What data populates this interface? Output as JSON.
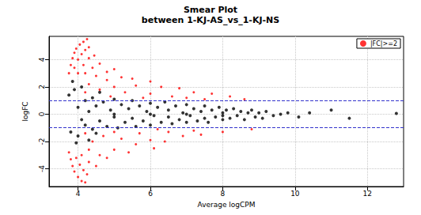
{
  "chart_data": {
    "type": "scatter",
    "title": "Smear Plot",
    "subtitle": "between 1-KJ-AS_vs_1-KJ-NS",
    "x_label": "Average logCPM",
    "y_label": "logFC",
    "xlim": [
      3.2,
      13.0
    ],
    "ylim": [
      -5.3,
      5.7
    ],
    "xticks": [
      4,
      6,
      8,
      10,
      12
    ],
    "yticks": [
      -4,
      -2,
      0,
      2,
      4
    ],
    "grid": true,
    "legend": "top-right",
    "hlines": [
      -1,
      1
    ],
    "hline_color": "#3333cc",
    "hline_style": "dashed",
    "series": [
      {
        "color": "#000000",
        "marker": "circle",
        "x": [
          3.75,
          3.8,
          3.9,
          4.0,
          4.0,
          4.1,
          4.2,
          4.2,
          4.3,
          4.4,
          4.4,
          4.5,
          4.6,
          4.7,
          4.8,
          4.9,
          5.0,
          5.0,
          5.1,
          5.2,
          5.3,
          5.4,
          5.5,
          5.5,
          5.6,
          5.7,
          5.8,
          5.9,
          6.0,
          6.0,
          6.1,
          6.2,
          6.3,
          6.4,
          6.5,
          6.5,
          6.6,
          6.7,
          6.8,
          6.9,
          7.0,
          7.0,
          7.1,
          7.2,
          7.3,
          7.4,
          7.5,
          7.5,
          7.6,
          7.7,
          7.8,
          7.9,
          8.0,
          8.0,
          8.1,
          8.2,
          8.3,
          8.4,
          8.5,
          8.6,
          8.7,
          8.8,
          8.9,
          9.0,
          9.1,
          9.2,
          9.4,
          9.6,
          9.8,
          10.1,
          10.4,
          11.0,
          11.5,
          12.8,
          4.1,
          3.85,
          3.95,
          4.3,
          4.6,
          4.5,
          5.0,
          6.0,
          7.0,
          8.0
        ],
        "values": [
          1.4,
          -1.3,
          1.8,
          -1.6,
          0.5,
          -0.4,
          1.0,
          -0.8,
          0.2,
          1.2,
          -1.1,
          0.6,
          -0.5,
          0.9,
          -0.9,
          0.3,
          -0.2,
          1.1,
          -1.0,
          0.7,
          -0.6,
          0.4,
          -0.3,
          1.0,
          -0.9,
          0.6,
          -0.5,
          0.2,
          0.8,
          -0.8,
          -0.1,
          0.5,
          -0.6,
          0.9,
          -0.2,
          0.3,
          -0.7,
          0.6,
          -0.4,
          0.1,
          0.7,
          -0.6,
          -0.1,
          0.4,
          -0.5,
          0.2,
          0.6,
          -0.3,
          -0.6,
          0.3,
          -0.2,
          0.5,
          -0.4,
          0.1,
          0.3,
          -0.3,
          0.4,
          -0.1,
          0.2,
          -0.4,
          0.1,
          0.3,
          -0.2,
          0.1,
          -0.3,
          0.2,
          -0.1,
          0.0,
          0.1,
          -0.2,
          0.1,
          0.3,
          -0.3,
          0.05,
          2.0,
          2.4,
          -2.1,
          -1.9,
          1.6,
          -1.4,
          0.0,
          0.0,
          0.0,
          -0.1
        ]
      },
      {
        "name": "|FC|>=2",
        "color": "#ff0000",
        "marker": "circle",
        "x": [
          3.75,
          3.8,
          3.85,
          3.9,
          3.95,
          4.05,
          4.15,
          4.25,
          3.9,
          4.0,
          4.1,
          4.2,
          4.3,
          4.0,
          4.15,
          4.3,
          4.45,
          4.2,
          4.4,
          4.6,
          4.5,
          4.8,
          5.0,
          4.8,
          5.2,
          5.5,
          6.0,
          5.6,
          6.3,
          6.8,
          7.2,
          7.7,
          8.2,
          5.0,
          4.3,
          4.6,
          5.3,
          6.0,
          6.6,
          7.0,
          4.2,
          4.9,
          5.8,
          7.5,
          8.6,
          3.75,
          3.8,
          3.85,
          3.9,
          4.0,
          4.1,
          4.2,
          3.95,
          4.05,
          4.15,
          4.25,
          4.1,
          4.3,
          4.5,
          4.3,
          4.6,
          4.8,
          5.0,
          5.4,
          5.6,
          6.1,
          6.4,
          6.0,
          6.9,
          7.4,
          8.0,
          4.4,
          4.7,
          5.2,
          5.7,
          6.5,
          7.2,
          4.2,
          5.0,
          8.8,
          6.2
        ],
        "values": [
          3.0,
          3.6,
          4.1,
          4.5,
          4.8,
          5.1,
          5.3,
          5.5,
          3.4,
          4.0,
          4.4,
          4.7,
          4.9,
          3.0,
          3.6,
          4.1,
          4.3,
          3.0,
          3.4,
          3.7,
          2.8,
          3.1,
          3.3,
          2.5,
          2.7,
          2.6,
          2.4,
          2.1,
          2.0,
          1.9,
          1.6,
          1.5,
          1.3,
          2.0,
          2.2,
          1.8,
          1.6,
          1.5,
          1.3,
          1.2,
          1.6,
          1.3,
          1.2,
          1.1,
          1.1,
          -2.8,
          -3.3,
          -3.8,
          -4.2,
          -4.6,
          -4.9,
          -5.0,
          -3.2,
          -3.7,
          -4.1,
          -4.4,
          -3.0,
          -3.5,
          -3.8,
          -2.6,
          -3.0,
          -3.2,
          -2.6,
          -2.8,
          -2.2,
          -2.5,
          -2.0,
          -1.9,
          -1.6,
          -1.5,
          -1.3,
          -2.0,
          -1.6,
          -1.8,
          -1.4,
          -1.3,
          -1.2,
          -1.4,
          -1.3,
          -1.1,
          -1.1
        ]
      }
    ]
  }
}
